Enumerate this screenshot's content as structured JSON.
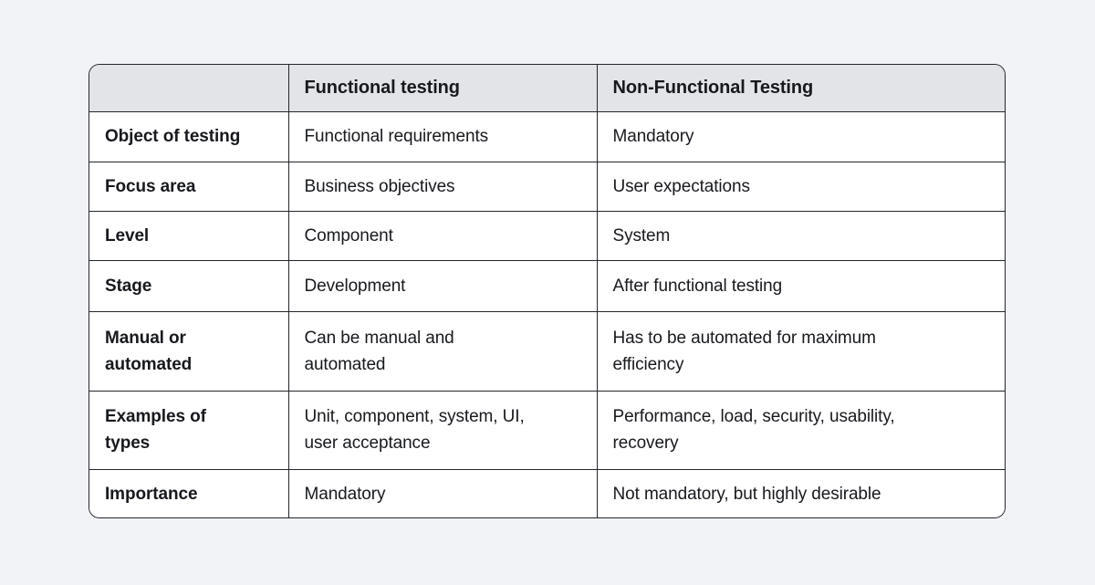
{
  "table": {
    "headers": {
      "label_column": "",
      "functional": "Functional testing",
      "non_functional": "Non-Functional Testing"
    },
    "rows": [
      {
        "label": "Object of testing",
        "functional": "Functional requirements",
        "non_functional": "Mandatory"
      },
      {
        "label": "Focus area",
        "functional": "Business objectives",
        "non_functional": "User expectations"
      },
      {
        "label": "Level",
        "functional": "Component",
        "non_functional": "System"
      },
      {
        "label": "Stage",
        "functional": "Development",
        "non_functional": "After functional testing"
      },
      {
        "label": "Manual or\nautomated",
        "functional": "Can be manual and\nautomated",
        "non_functional": "Has to be automated for maximum\nefficiency"
      },
      {
        "label": "Examples of\ntypes",
        "functional": "Unit, component, system, UI,\nuser acceptance",
        "non_functional": "Performance, load, security, usability,\nrecovery"
      },
      {
        "label": "Importance",
        "functional": "Mandatory",
        "non_functional": "Not mandatory, but highly desirable"
      }
    ],
    "colors": {
      "page_background": "#f1f3f6",
      "header_background": "#e2e4e7",
      "cell_background": "#ffffff",
      "border": "#23262a",
      "text": "#17191d"
    }
  }
}
